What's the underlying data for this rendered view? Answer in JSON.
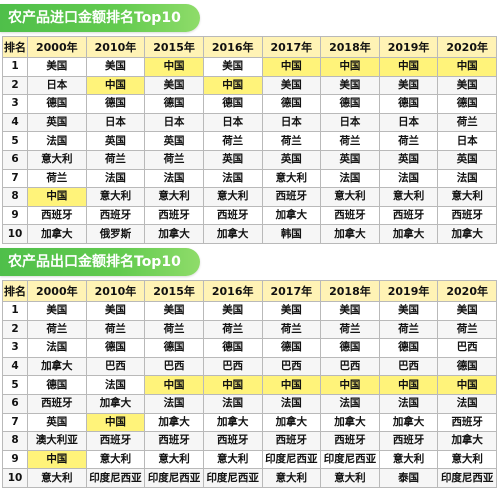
{
  "import_table": {
    "title": "农产品进口金额排名Top10",
    "headers": [
      "排名",
      "2000年",
      "2010年",
      "2015年",
      "2016年",
      "2017年",
      "2018年",
      "2019年",
      "2020年"
    ],
    "rows": [
      {
        "rank": "1",
        "cells": [
          "美国",
          "美国",
          "中国",
          "美国",
          "中国",
          "中国",
          "中国",
          "中国"
        ]
      },
      {
        "rank": "2",
        "cells": [
          "日本",
          "中国",
          "美国",
          "中国",
          "美国",
          "美国",
          "美国",
          "美国"
        ]
      },
      {
        "rank": "3",
        "cells": [
          "德国",
          "德国",
          "德国",
          "德国",
          "德国",
          "德国",
          "德国",
          "德国"
        ]
      },
      {
        "rank": "4",
        "cells": [
          "英国",
          "日本",
          "日本",
          "日本",
          "日本",
          "日本",
          "日本",
          "荷兰"
        ]
      },
      {
        "rank": "5",
        "cells": [
          "法国",
          "英国",
          "英国",
          "荷兰",
          "荷兰",
          "荷兰",
          "荷兰",
          "日本"
        ]
      },
      {
        "rank": "6",
        "cells": [
          "意大利",
          "荷兰",
          "荷兰",
          "英国",
          "英国",
          "英国",
          "英国",
          "英国"
        ]
      },
      {
        "rank": "7",
        "cells": [
          "荷兰",
          "法国",
          "法国",
          "法国",
          "意大利",
          "法国",
          "法国",
          "法国"
        ]
      },
      {
        "rank": "8",
        "cells": [
          "中国",
          "意大利",
          "意大利",
          "意大利",
          "西班牙",
          "意大利",
          "意大利",
          "意大利"
        ]
      },
      {
        "rank": "9",
        "cells": [
          "西班牙",
          "西班牙",
          "西班牙",
          "西班牙",
          "加拿大",
          "西班牙",
          "西班牙",
          "西班牙"
        ]
      },
      {
        "rank": "10",
        "cells": [
          "加拿大",
          "俄罗斯",
          "加拿大",
          "加拿大",
          "韩国",
          "加拿大",
          "加拿大",
          "加拿大"
        ]
      }
    ]
  },
  "export_table": {
    "title": "农产品出口金额排名Top10",
    "headers": [
      "排名",
      "2000年",
      "2010年",
      "2015年",
      "2016年",
      "2017年",
      "2018年",
      "2019年",
      "2020年"
    ],
    "rows": [
      {
        "rank": "1",
        "cells": [
          "美国",
          "美国",
          "美国",
          "美国",
          "美国",
          "美国",
          "美国",
          "美国"
        ]
      },
      {
        "rank": "2",
        "cells": [
          "荷兰",
          "荷兰",
          "荷兰",
          "荷兰",
          "荷兰",
          "荷兰",
          "荷兰",
          "荷兰"
        ]
      },
      {
        "rank": "3",
        "cells": [
          "法国",
          "德国",
          "德国",
          "德国",
          "德国",
          "德国",
          "德国",
          "巴西"
        ]
      },
      {
        "rank": "4",
        "cells": [
          "加拿大",
          "巴西",
          "巴西",
          "巴西",
          "巴西",
          "巴西",
          "巴西",
          "德国"
        ]
      },
      {
        "rank": "5",
        "cells": [
          "德国",
          "法国",
          "中国",
          "中国",
          "中国",
          "中国",
          "中国",
          "中国"
        ]
      },
      {
        "rank": "6",
        "cells": [
          "西班牙",
          "加拿大",
          "法国",
          "法国",
          "法国",
          "法国",
          "法国",
          "法国"
        ]
      },
      {
        "rank": "7",
        "cells": [
          "英国",
          "中国",
          "加拿大",
          "加拿大",
          "加拿大",
          "加拿大",
          "加拿大",
          "西班牙"
        ]
      },
      {
        "rank": "8",
        "cells": [
          "澳大利亚",
          "西班牙",
          "西班牙",
          "西班牙",
          "西班牙",
          "西班牙",
          "西班牙",
          "加拿大"
        ]
      },
      {
        "rank": "9",
        "cells": [
          "中国",
          "意大利",
          "意大利",
          "意大利",
          "印度尼西亚",
          "印度尼西亚",
          "意大利",
          "意大利"
        ]
      },
      {
        "rank": "10",
        "cells": [
          "意大利",
          "印度尼西亚",
          "印度尼西亚",
          "印度尼西亚",
          "意大利",
          "意大利",
          "泰国",
          "印度尼西亚"
        ]
      }
    ]
  },
  "highlight": {
    "country": "中国",
    "color": "#fff37a",
    "header_color": "#fff3b5",
    "banner_color": "#55c24b"
  }
}
